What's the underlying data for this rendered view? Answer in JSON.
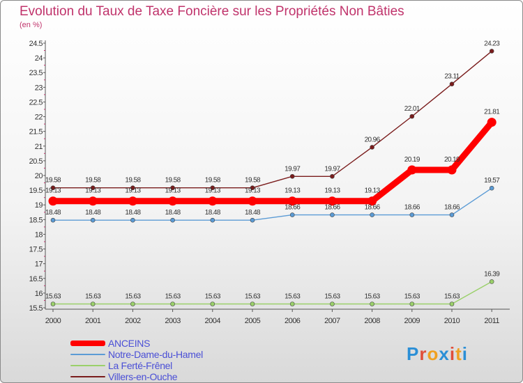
{
  "title": "Evolution du Taux de Taxe Foncière sur les Propriétés Non Bâties",
  "subtitle": "(en %)",
  "brand": {
    "text": "Proxiti",
    "colors": [
      "#2b8fd6",
      "#e04f3a",
      "#f0a020",
      "#2b8fd6",
      "#e04f3a",
      "#f0a020",
      "#2b8fd6"
    ]
  },
  "chart_data": {
    "type": "line",
    "title": "Evolution du Taux de Taxe Foncière sur les Propriétés Non Bâties",
    "ylabel": "(en %)",
    "xlabel": "",
    "categories": [
      "2000",
      "2001",
      "2002",
      "2003",
      "2004",
      "2005",
      "2006",
      "2007",
      "2008",
      "2009",
      "2010",
      "2011"
    ],
    "ylim": [
      15.5,
      24.5
    ],
    "yticks": [
      "15.5",
      "16",
      "16.5",
      "17",
      "17.5",
      "18",
      "18.5",
      "19",
      "19.5",
      "20",
      "20.5",
      "21",
      "21.5",
      "22",
      "22.5",
      "23",
      "23.5",
      "24",
      "24.5"
    ],
    "grid": false,
    "legend_position": "bottom-left",
    "series": [
      {
        "name": "Villers-en-Ouche",
        "color": "#7a1c1c",
        "emphasis": false,
        "values": [
          19.58,
          19.58,
          19.58,
          19.58,
          19.58,
          19.58,
          19.97,
          19.97,
          20.96,
          22.01,
          23.11,
          24.23
        ],
        "labels": [
          "19.58",
          "19.58",
          "19.58",
          "19.58",
          "19.58",
          "19.58",
          "19.97",
          "19.97",
          "20.96",
          "22.01",
          "23.11",
          "24.23"
        ]
      },
      {
        "name": "ANCEINS",
        "color": "#ff0000",
        "emphasis": true,
        "values": [
          19.13,
          19.13,
          19.13,
          19.13,
          19.13,
          19.13,
          19.13,
          19.13,
          19.13,
          20.19,
          20.19,
          21.81
        ],
        "labels": [
          "19.13",
          "19.13",
          "19.13",
          "19.13",
          "19.13",
          "19.13",
          "19.13",
          "19.13",
          "19.13",
          "20.19",
          "20.19",
          "21.81"
        ]
      },
      {
        "name": "Notre-Dame-du-Hamel",
        "color": "#5b9bd5",
        "emphasis": false,
        "values": [
          18.48,
          18.48,
          18.48,
          18.48,
          18.48,
          18.48,
          18.66,
          18.66,
          18.66,
          18.66,
          18.66,
          19.57
        ],
        "labels": [
          "18.48",
          "18.48",
          "18.48",
          "18.48",
          "18.48",
          "18.48",
          "18.66",
          "18.66",
          "18.66",
          "18.66",
          "18.66",
          "19.57"
        ]
      },
      {
        "name": "La Ferté-Frênel",
        "color": "#9ad06a",
        "emphasis": false,
        "values": [
          15.63,
          15.63,
          15.63,
          15.63,
          15.63,
          15.63,
          15.63,
          15.63,
          15.63,
          15.63,
          15.63,
          16.39
        ],
        "labels": [
          "15.63",
          "15.63",
          "15.63",
          "15.63",
          "15.63",
          "15.63",
          "15.63",
          "15.63",
          "15.63",
          "15.63",
          "15.63",
          "16.39"
        ]
      }
    ],
    "legend": [
      "ANCEINS",
      "Notre-Dame-du-Hamel",
      "La Ferté-Frênel",
      "Villers-en-Ouche"
    ]
  }
}
